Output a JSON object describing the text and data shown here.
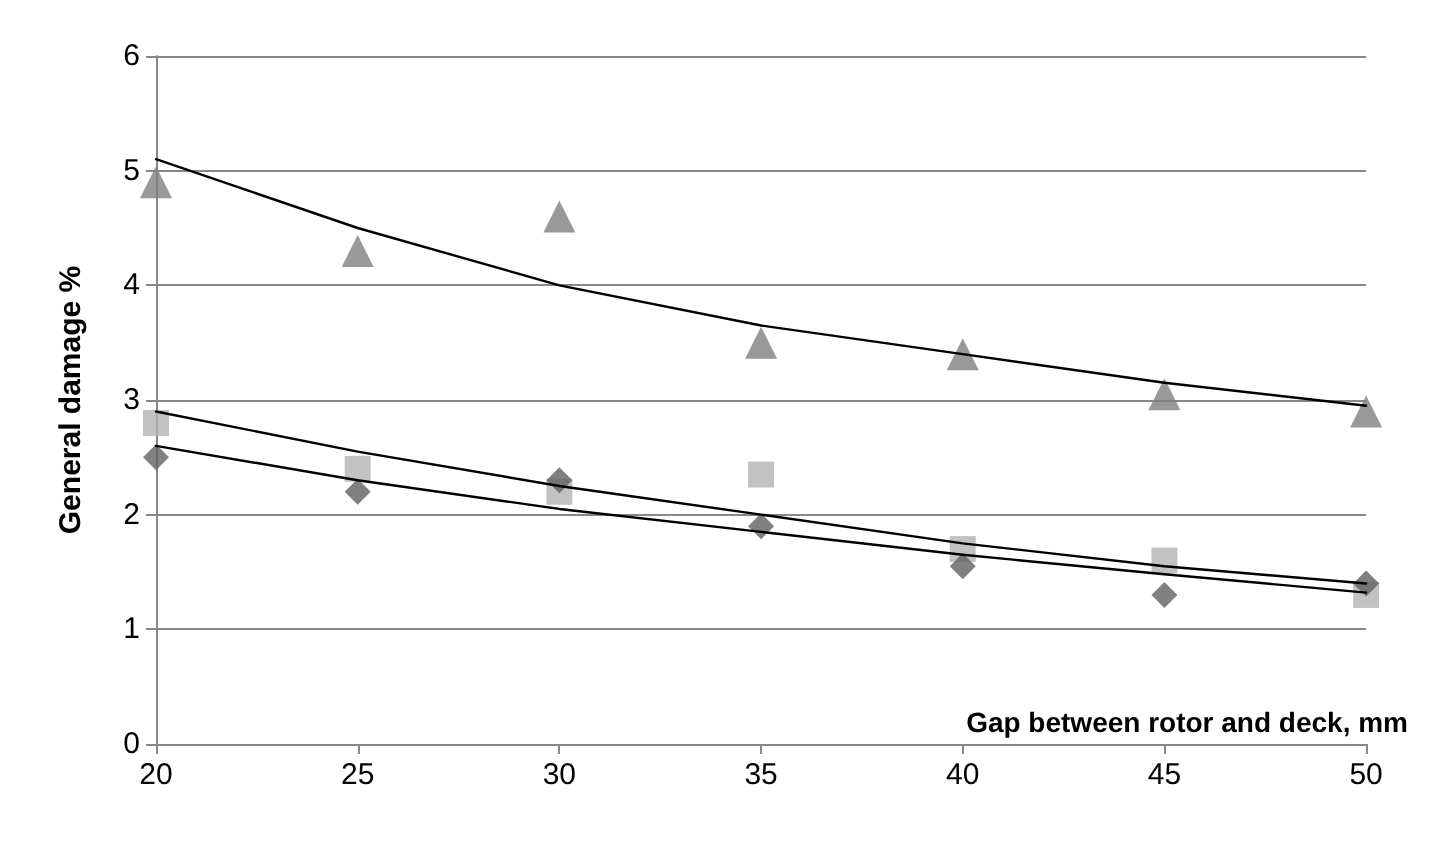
{
  "chart_data": {
    "type": "scatter",
    "xlabel": "Gap between rotor and deck, mm",
    "ylabel": "General damage %",
    "xlim": [
      20,
      50
    ],
    "xticks": [
      20,
      25,
      30,
      35,
      40,
      45,
      50
    ],
    "ylim": [
      0,
      6
    ],
    "yticks": [
      0,
      1,
      2,
      3,
      4,
      5,
      6
    ],
    "grid": "y",
    "series": [
      {
        "marker": "triangle",
        "color": "#808080",
        "x": [
          20,
          25,
          30,
          35,
          40,
          45,
          50
        ],
        "values": [
          4.9,
          4.3,
          4.6,
          3.5,
          3.4,
          3.05,
          2.9
        ]
      },
      {
        "marker": "square",
        "color": "#b3b3b3",
        "x": [
          20,
          25,
          30,
          35,
          40,
          45,
          50
        ],
        "values": [
          2.8,
          2.4,
          2.2,
          2.35,
          1.7,
          1.6,
          1.3
        ]
      },
      {
        "marker": "diamond",
        "color": "#606060",
        "x": [
          20,
          25,
          30,
          35,
          40,
          45,
          50
        ],
        "values": [
          2.5,
          2.2,
          2.3,
          1.9,
          1.55,
          1.3,
          1.4
        ]
      },
      {
        "type": "line",
        "marker": "none",
        "line_style": "solid",
        "color": "#000000",
        "x": [
          20,
          25,
          30,
          35,
          40,
          45,
          50
        ],
        "values": [
          5.1,
          4.5,
          4.0,
          3.65,
          3.4,
          3.15,
          2.95
        ]
      },
      {
        "type": "line",
        "marker": "none",
        "line_style": "solid",
        "color": "#000000",
        "x": [
          20,
          25,
          30,
          35,
          40,
          45,
          50
        ],
        "values": [
          2.9,
          2.55,
          2.25,
          2.0,
          1.75,
          1.55,
          1.4
        ]
      },
      {
        "type": "line",
        "marker": "none",
        "line_style": "solid",
        "color": "#000000",
        "x": [
          20,
          25,
          30,
          35,
          40,
          45,
          50
        ],
        "values": [
          2.6,
          2.3,
          2.05,
          1.85,
          1.65,
          1.48,
          1.32
        ]
      }
    ]
  }
}
